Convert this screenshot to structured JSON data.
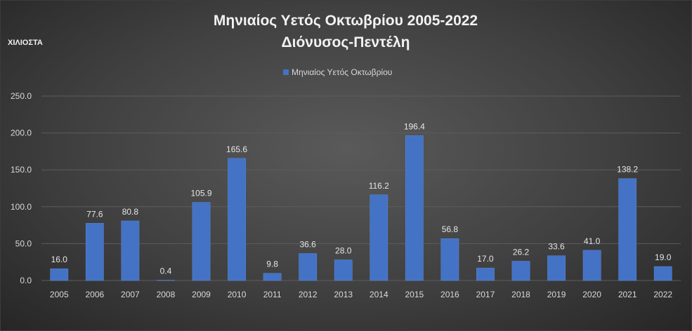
{
  "chart_data": {
    "type": "bar",
    "title": "Μηνιαίος Υετός  Οκτωβρίου 2005-2022",
    "subtitle": "Διόνυσος-Πεντέλη",
    "ylabel": "ΧΙΛΙΟΣΤΑ",
    "xlabel": "",
    "ylim": [
      0,
      250
    ],
    "y_ticks": [
      "0.0",
      "50.0",
      "100.0",
      "150.0",
      "200.0",
      "250.0"
    ],
    "grid": true,
    "legend_position": "top-center",
    "categories": [
      "2005",
      "2006",
      "2007",
      "2008",
      "2009",
      "2010",
      "2011",
      "2012",
      "2013",
      "2014",
      "2015",
      "2016",
      "2017",
      "2018",
      "2019",
      "2020",
      "2021",
      "2022"
    ],
    "series": [
      {
        "name": "Μηνιαίος Υετός  Οκτωβρίου",
        "color": "#4472c4",
        "values": [
          16.0,
          77.6,
          80.8,
          0.4,
          105.9,
          165.6,
          9.8,
          36.6,
          28.0,
          116.2,
          196.4,
          56.8,
          17.0,
          26.2,
          33.6,
          41.0,
          138.2,
          19.0
        ],
        "labels": [
          "16.0",
          "77.6",
          "80.8",
          "0.4",
          "105.9",
          "165.6",
          "9.8",
          "36.6",
          "28.0",
          "116.2",
          "196.4",
          "56.8",
          "17.0",
          "26.2",
          "33.6",
          "41.0",
          "138.2",
          "19.0"
        ]
      }
    ]
  }
}
